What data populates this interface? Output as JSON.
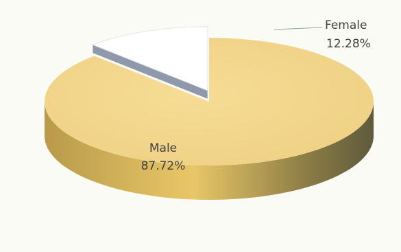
{
  "chart_data": {
    "type": "pie",
    "categories": [
      "Male",
      "Female"
    ],
    "values": [
      87.72,
      12.28
    ],
    "value_labels": [
      "87.72%",
      "12.28%"
    ],
    "colors": {
      "male": "#f2d68b",
      "female": "#ffffff",
      "female_side": "#8f99ab"
    },
    "exploded": "Female",
    "style": "3d"
  }
}
